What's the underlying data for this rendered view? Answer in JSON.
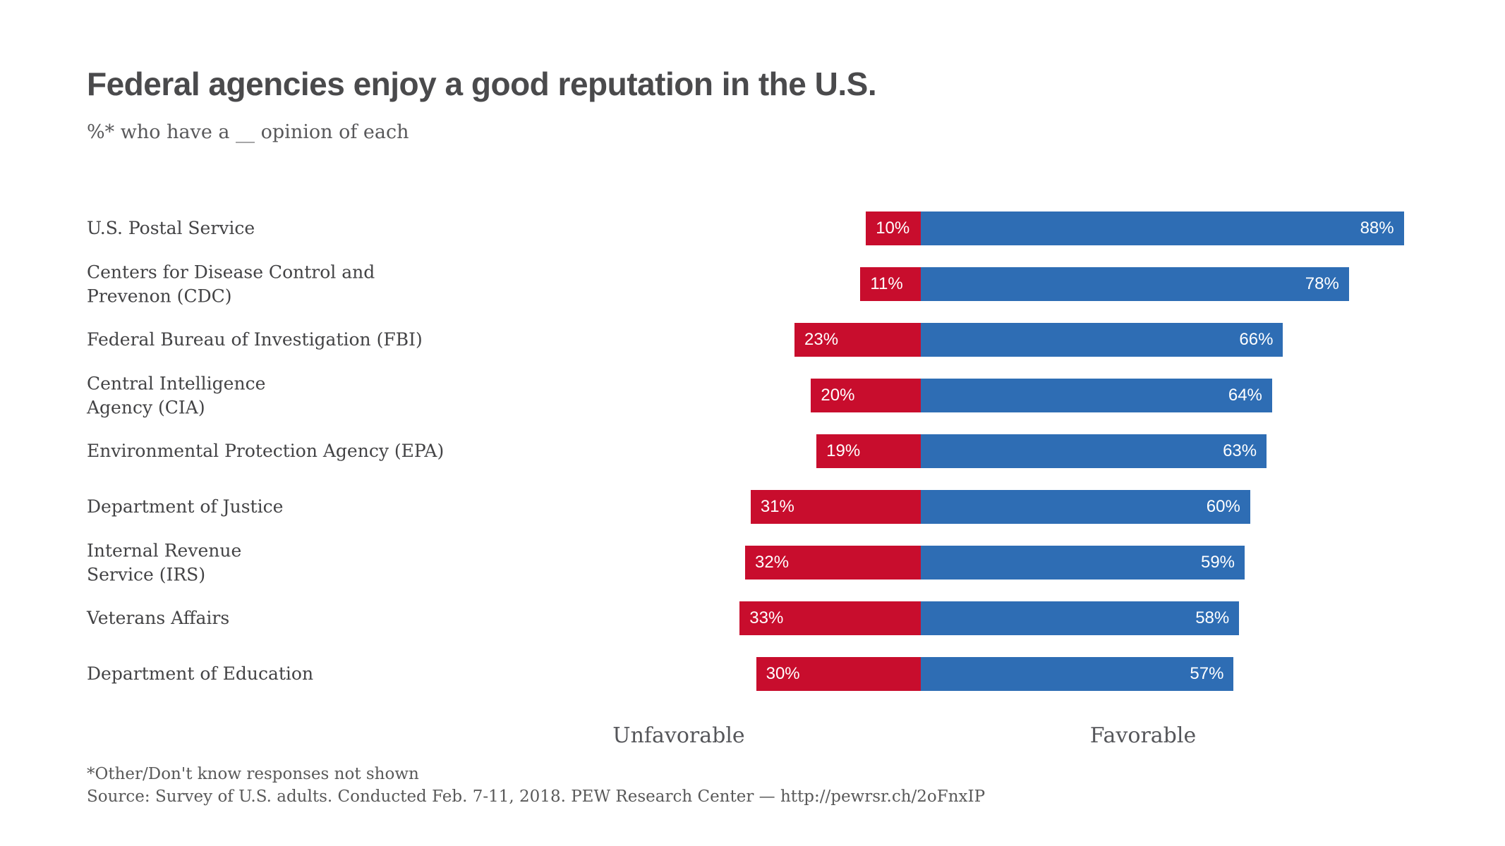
{
  "page": {
    "title": "Federal agencies enjoy a good reputation in the U.S.",
    "subtitle": "%* who have a  __ opinion of each",
    "footnote": "*Other/Don't know responses not shown",
    "source": "Source: Survey of U.S. adults. Conducted Feb. 7-11, 2018. PEW Research Center — http://pewrsr.ch/2oFnxIP"
  },
  "chart_data": {
    "type": "bar",
    "variant": "horizontal-diverging",
    "title": "Federal agencies enjoy a good reputation in the U.S.",
    "subtitle": "%* who have a  __ opinion of each",
    "categories": [
      "U.S. Postal Service",
      "Centers for Disease Control and\nPrevenon (CDC)",
      "Federal Bureau of Investigation (FBI)",
      "Central Intelligence\nAgency (CIA)",
      "Environmental Protection Agency (EPA)",
      "Department of Justice",
      "Internal Revenue\nService (IRS)",
      "Veterans Affairs",
      "Department of Education"
    ],
    "series": [
      {
        "name": "Unfavorable",
        "color": "#C80D2D",
        "values": [
          10,
          11,
          23,
          20,
          19,
          31,
          32,
          33,
          30
        ]
      },
      {
        "name": "Favorable",
        "color": "#2E6DB4",
        "values": [
          88,
          78,
          66,
          64,
          63,
          60,
          59,
          58,
          57
        ]
      }
    ],
    "value_suffix": "%",
    "axis_labels": {
      "left": "Unfavorable",
      "right": "Favorable"
    },
    "xlim": [
      -40,
      100
    ],
    "grid": false,
    "legend_position": "bottom-inline",
    "footnotes": [
      "*Other/Don't know responses not shown",
      "Source: Survey of U.S. adults. Conducted Feb. 7-11, 2018. PEW Research Center — http://pewrsr.ch/2oFnxIP"
    ]
  }
}
